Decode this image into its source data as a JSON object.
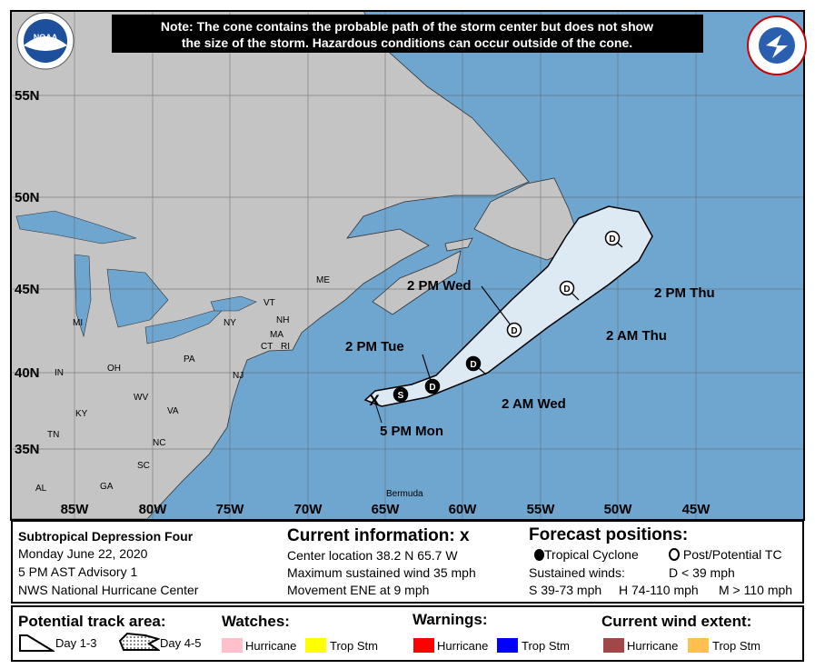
{
  "note": [
    "Note: The cone contains the probable path of the storm center but does not show",
    "the size of the storm. Hazardous conditions can occur outside of the cone."
  ],
  "logos": {
    "left": "NOAA",
    "right": "NATIONAL WEATHER SERVICE"
  },
  "lat_labels": [
    "55N",
    "50N",
    "45N",
    "40N",
    "35N"
  ],
  "lon_labels": [
    "85W",
    "80W",
    "75W",
    "70W",
    "65W",
    "60W",
    "55W",
    "50W",
    "45W"
  ],
  "place_labels": [
    "MI",
    "IN",
    "OH",
    "WV",
    "KY",
    "VA",
    "TN",
    "NC",
    "SC",
    "GA",
    "AL",
    "PA",
    "NY",
    "VT",
    "NH",
    "ME",
    "MA",
    "CT",
    "RI",
    "NJ",
    "Bermuda"
  ],
  "track": {
    "current": {
      "label": "5 PM Mon",
      "symbol": "X"
    },
    "points": [
      {
        "label": "",
        "symbol": "S",
        "type": "tropical"
      },
      {
        "label": "2 PM Tue",
        "symbol": "D",
        "type": "tropical"
      },
      {
        "label": "2 AM Wed",
        "symbol": "D",
        "type": "tropical"
      },
      {
        "label": "2 PM Wed",
        "symbol": "D",
        "type": "post"
      },
      {
        "label": "2 AM Thu",
        "symbol": "D",
        "type": "post"
      },
      {
        "label": "2 PM Thu",
        "symbol": "D",
        "type": "post"
      }
    ]
  },
  "info": {
    "storm_name": "Subtropical Depression Four",
    "date": "Monday June 22, 2020",
    "advisory": "5 PM AST Advisory 1",
    "center": "NWS National Hurricane Center",
    "current_title": "Current information:",
    "current_symbol": "x",
    "location": "Center location 38.2 N 65.7 W",
    "wind": "Maximum sustained wind 35 mph",
    "movement": "Movement ENE at 9 mph",
    "forecast_title": "Forecast positions:",
    "tc_label": "Tropical Cyclone",
    "ptc_label": "Post/Potential TC",
    "sustained": "Sustained winds:",
    "d_def": "D < 39 mph",
    "s_def": "S 39-73 mph",
    "h_def": "H 74-110 mph",
    "m_def": "M > 110 mph"
  },
  "legend": {
    "track_title": "Potential track area:",
    "day13": "Day 1-3",
    "day45": "Day 4-5",
    "watches_title": "Watches:",
    "warnings_title": "Warnings:",
    "wind_title": "Current wind extent:",
    "hurricane": "Hurricane",
    "trop_stm": "Trop Stm",
    "colors": {
      "watch_hurricane": "#ffc0cb",
      "watch_ts": "#ffff00",
      "warn_hurricane": "#ff0000",
      "warn_ts": "#0000ff",
      "wind_hurricane": "#a04848",
      "wind_ts": "#ffc050"
    }
  },
  "colors": {
    "ocean": "#6fa6d0",
    "land": "#c4c4c4",
    "cone": "#dde9f3"
  }
}
